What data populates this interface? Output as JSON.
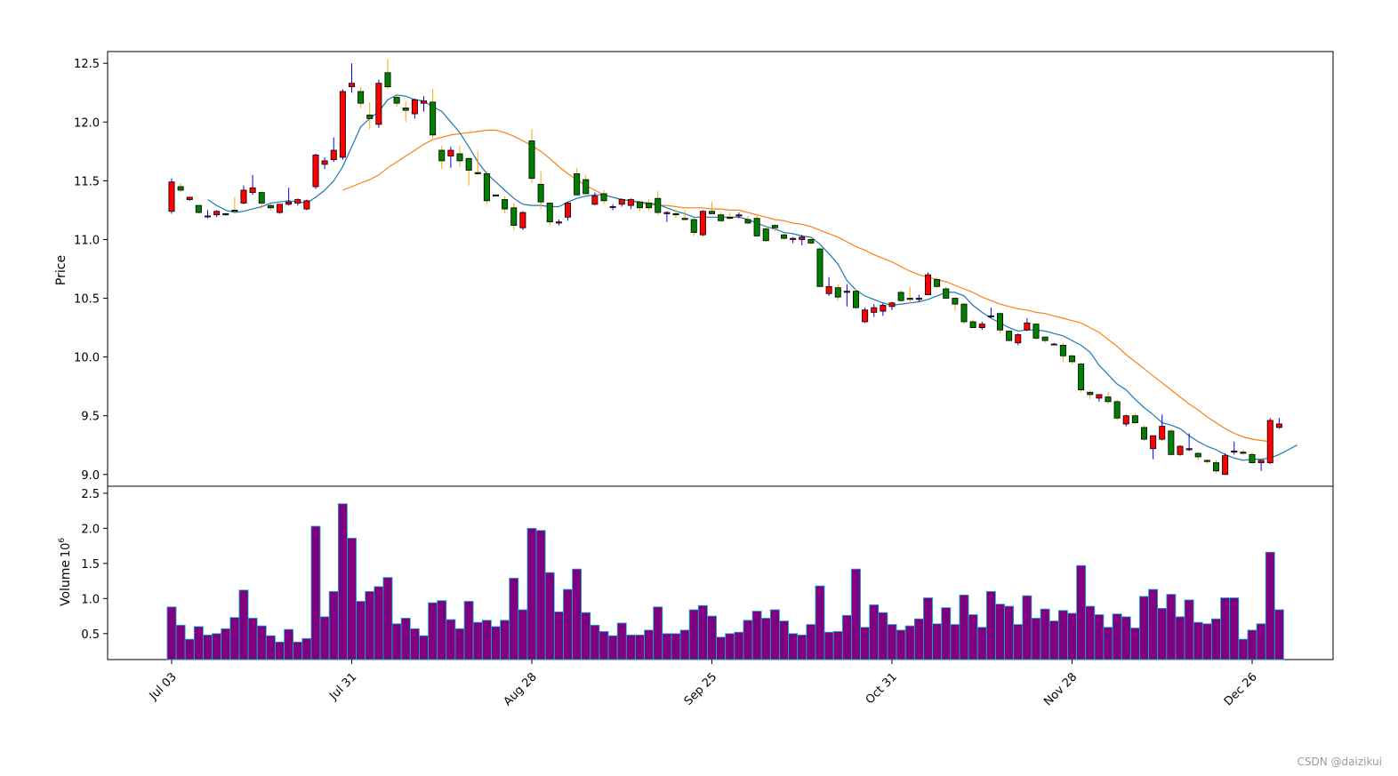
{
  "watermark": "CSDN @daizikui",
  "colors": {
    "up_body": "#ff0000",
    "down_body": "#008000",
    "up_wick": "#0000ff",
    "down_wick": "#ffa500",
    "ma_short": "#1f77b4",
    "ma_long": "#ff7f0e",
    "volume_face": "#800080",
    "volume_edge": "#00bcd4"
  },
  "chart_data": [
    {
      "type": "candlestick",
      "ylabel": "Price",
      "ylim": [
        8.9,
        12.6
      ],
      "yticks": [
        "9.0",
        "9.5",
        "10.0",
        "10.5",
        "11.0",
        "11.5",
        "12.0",
        "12.5"
      ],
      "x_tick_labels": [
        "Jul 03",
        "Jul 31",
        "Aug 28",
        "Sep 25",
        "Oct 31",
        "Nov 28",
        "Dec 26"
      ],
      "x_tick_indices": [
        0,
        20,
        40,
        60,
        80,
        100,
        120
      ],
      "grid": false,
      "candles_ohlc": [
        [
          11.24,
          11.52,
          11.22,
          11.49
        ],
        [
          11.45,
          11.48,
          11.4,
          11.42
        ],
        [
          11.34,
          11.36,
          11.33,
          11.36
        ],
        [
          11.29,
          11.28,
          11.22,
          11.23
        ],
        [
          11.2,
          11.25,
          11.18,
          11.2
        ],
        [
          11.21,
          11.25,
          11.19,
          11.24
        ],
        [
          11.22,
          11.23,
          11.2,
          11.21
        ],
        [
          11.25,
          11.36,
          11.22,
          11.24
        ],
        [
          11.31,
          11.46,
          11.3,
          11.42
        ],
        [
          11.4,
          11.55,
          11.38,
          11.44
        ],
        [
          11.4,
          11.41,
          11.26,
          11.31
        ],
        [
          11.29,
          11.3,
          11.25,
          11.27
        ],
        [
          11.23,
          11.3,
          11.22,
          11.3
        ],
        [
          11.3,
          11.44,
          11.29,
          11.32
        ],
        [
          11.31,
          11.35,
          11.29,
          11.34
        ],
        [
          11.26,
          11.34,
          11.25,
          11.33
        ],
        [
          11.45,
          11.73,
          11.43,
          11.72
        ],
        [
          11.64,
          11.7,
          11.6,
          11.67
        ],
        [
          11.68,
          11.87,
          11.66,
          11.76
        ],
        [
          11.7,
          12.28,
          11.68,
          12.26
        ],
        [
          12.3,
          12.5,
          12.25,
          12.33
        ],
        [
          12.26,
          12.3,
          12.12,
          12.16
        ],
        [
          12.06,
          12.17,
          11.94,
          12.03
        ],
        [
          11.98,
          12.36,
          11.95,
          12.33
        ],
        [
          12.42,
          12.54,
          12.28,
          12.3
        ],
        [
          12.21,
          12.24,
          12.13,
          12.16
        ],
        [
          12.12,
          12.18,
          12.0,
          12.1
        ],
        [
          12.07,
          12.2,
          12.03,
          12.19
        ],
        [
          12.16,
          12.22,
          12.09,
          12.18
        ],
        [
          12.17,
          12.28,
          11.86,
          11.89
        ],
        [
          11.76,
          11.8,
          11.6,
          11.67
        ],
        [
          11.71,
          11.79,
          11.61,
          11.76
        ],
        [
          11.73,
          11.8,
          11.62,
          11.67
        ],
        [
          11.69,
          11.7,
          11.46,
          11.59
        ],
        [
          11.57,
          11.75,
          11.55,
          11.56
        ],
        [
          11.56,
          11.58,
          11.3,
          11.33
        ],
        [
          11.38,
          11.38,
          11.37,
          11.37
        ],
        [
          11.34,
          11.37,
          11.22,
          11.26
        ],
        [
          11.27,
          11.31,
          11.08,
          11.12
        ],
        [
          11.1,
          11.24,
          11.08,
          11.23
        ],
        [
          11.84,
          11.94,
          11.48,
          11.52
        ],
        [
          11.47,
          11.58,
          11.26,
          11.32
        ],
        [
          11.31,
          11.31,
          11.12,
          11.15
        ],
        [
          11.14,
          11.17,
          11.12,
          11.15
        ],
        [
          11.19,
          11.32,
          11.16,
          11.31
        ],
        [
          11.56,
          11.61,
          11.38,
          11.38
        ],
        [
          11.51,
          11.55,
          11.39,
          11.39
        ],
        [
          11.3,
          11.4,
          11.29,
          11.37
        ],
        [
          11.39,
          11.42,
          11.3,
          11.33
        ],
        [
          11.28,
          11.3,
          11.25,
          11.28
        ],
        [
          11.3,
          11.35,
          11.28,
          11.34
        ],
        [
          11.29,
          11.35,
          11.26,
          11.34
        ],
        [
          11.32,
          11.33,
          11.24,
          11.27
        ],
        [
          11.31,
          11.34,
          11.24,
          11.27
        ],
        [
          11.35,
          11.41,
          11.21,
          11.23
        ],
        [
          11.22,
          11.24,
          11.15,
          11.23
        ],
        [
          11.22,
          11.26,
          11.18,
          11.21
        ],
        [
          11.18,
          11.25,
          11.16,
          11.17
        ],
        [
          11.17,
          11.18,
          11.03,
          11.06
        ],
        [
          11.04,
          11.25,
          11.03,
          11.24
        ],
        [
          11.24,
          11.32,
          11.22,
          11.22
        ],
        [
          11.21,
          11.23,
          11.15,
          11.16
        ],
        [
          11.19,
          11.23,
          11.17,
          11.18
        ],
        [
          11.2,
          11.23,
          11.18,
          11.21
        ],
        [
          11.17,
          11.2,
          11.13,
          11.14
        ],
        [
          11.18,
          11.21,
          11.04,
          11.03
        ],
        [
          11.09,
          11.12,
          10.98,
          10.99
        ],
        [
          11.12,
          11.13,
          11.07,
          11.1
        ],
        [
          11.04,
          11.05,
          11.0,
          11.01
        ],
        [
          11.0,
          11.02,
          10.97,
          11.01
        ],
        [
          11.0,
          11.04,
          10.95,
          11.02
        ],
        [
          11.0,
          11.03,
          10.96,
          10.97
        ],
        [
          10.92,
          10.93,
          10.6,
          10.6
        ],
        [
          10.54,
          10.68,
          10.52,
          10.6
        ],
        [
          10.59,
          10.62,
          10.48,
          10.51
        ],
        [
          10.55,
          10.62,
          10.43,
          10.56
        ],
        [
          10.56,
          10.58,
          10.41,
          10.42
        ],
        [
          10.3,
          10.42,
          10.29,
          10.4
        ],
        [
          10.38,
          10.45,
          10.34,
          10.42
        ],
        [
          10.39,
          10.46,
          10.35,
          10.44
        ],
        [
          10.43,
          10.47,
          10.4,
          10.46
        ],
        [
          10.55,
          10.57,
          10.47,
          10.48
        ],
        [
          10.5,
          10.6,
          10.46,
          10.49
        ],
        [
          10.49,
          10.53,
          10.47,
          10.5
        ],
        [
          10.53,
          10.72,
          10.53,
          10.7
        ],
        [
          10.66,
          10.68,
          10.59,
          10.6
        ],
        [
          10.58,
          10.6,
          10.51,
          10.5
        ],
        [
          10.5,
          10.51,
          10.4,
          10.45
        ],
        [
          10.45,
          10.46,
          10.28,
          10.3
        ],
        [
          10.3,
          10.32,
          10.25,
          10.25
        ],
        [
          10.25,
          10.3,
          10.23,
          10.28
        ],
        [
          10.35,
          10.42,
          10.33,
          10.35
        ],
        [
          10.37,
          10.38,
          10.2,
          10.23
        ],
        [
          10.22,
          10.23,
          10.13,
          10.14
        ],
        [
          10.12,
          10.2,
          10.1,
          10.19
        ],
        [
          10.23,
          10.33,
          10.22,
          10.29
        ],
        [
          10.28,
          10.29,
          10.15,
          10.16
        ],
        [
          10.17,
          10.17,
          10.12,
          10.14
        ],
        [
          10.11,
          10.12,
          10.1,
          10.11
        ],
        [
          10.1,
          10.12,
          9.96,
          10.01
        ],
        [
          10.01,
          10.02,
          9.94,
          9.96
        ],
        [
          9.94,
          9.95,
          9.7,
          9.72
        ],
        [
          9.7,
          9.72,
          9.64,
          9.68
        ],
        [
          9.65,
          9.68,
          9.62,
          9.68
        ],
        [
          9.66,
          9.7,
          9.6,
          9.62
        ],
        [
          9.62,
          9.64,
          9.46,
          9.48
        ],
        [
          9.43,
          9.51,
          9.41,
          9.5
        ],
        [
          9.5,
          9.52,
          9.43,
          9.44
        ],
        [
          9.4,
          9.42,
          9.29,
          9.3
        ],
        [
          9.22,
          9.33,
          9.13,
          9.33
        ],
        [
          9.3,
          9.51,
          9.29,
          9.41
        ],
        [
          9.37,
          9.39,
          9.16,
          9.17
        ],
        [
          9.17,
          9.25,
          9.16,
          9.24
        ],
        [
          9.21,
          9.35,
          9.2,
          9.22
        ],
        [
          9.18,
          9.19,
          9.12,
          9.15
        ],
        [
          9.12,
          9.13,
          9.09,
          9.11
        ],
        [
          9.1,
          9.12,
          9.01,
          9.03
        ],
        [
          9.0,
          9.18,
          9.0,
          9.16
        ],
        [
          9.19,
          9.28,
          9.17,
          9.2
        ],
        [
          9.19,
          9.21,
          9.17,
          9.18
        ],
        [
          9.17,
          9.19,
          9.09,
          9.1
        ],
        [
          9.1,
          9.12,
          9.03,
          9.12
        ],
        [
          9.1,
          9.48,
          9.09,
          9.46
        ],
        [
          9.4,
          9.48,
          9.39,
          9.43
        ]
      ],
      "ma_short_values": [
        null,
        null,
        null,
        null,
        11.34,
        11.29,
        11.25,
        11.23,
        11.24,
        11.26,
        11.28,
        11.31,
        11.32,
        11.33,
        11.32,
        11.31,
        11.36,
        11.42,
        11.5,
        11.62,
        11.79,
        11.96,
        12.03,
        12.09,
        12.19,
        12.23,
        12.22,
        12.19,
        12.18,
        12.13,
        12.09,
        12.0,
        11.91,
        11.79,
        11.66,
        11.56,
        11.49,
        11.42,
        11.35,
        11.3,
        11.29,
        11.29,
        11.28,
        11.28,
        11.32,
        11.35,
        11.37,
        11.38,
        11.38,
        11.36,
        11.34,
        11.33,
        11.32,
        11.31,
        11.3,
        11.27,
        11.24,
        11.22,
        11.19,
        11.19,
        11.19,
        11.19,
        11.19,
        11.19,
        11.17,
        11.14,
        11.11,
        11.09,
        11.06,
        11.05,
        11.03,
        11.02,
        10.96,
        10.88,
        10.79,
        10.65,
        10.57,
        10.52,
        10.49,
        10.46,
        10.44,
        10.45,
        10.46,
        10.47,
        10.49,
        10.52,
        10.55,
        10.55,
        10.52,
        10.44,
        10.38,
        10.33,
        10.29,
        10.25,
        10.22,
        10.23,
        10.23,
        10.22,
        10.2,
        10.18,
        10.14,
        10.1,
        10.04,
        9.93,
        9.85,
        9.77,
        9.72,
        9.64,
        9.57,
        9.51,
        9.44,
        9.42,
        9.39,
        9.33,
        9.28,
        9.24,
        9.21,
        9.17,
        9.14,
        9.12,
        9.13,
        9.13,
        9.14,
        9.17,
        9.21,
        9.25
      ],
      "ma_long_values": [
        null,
        null,
        null,
        null,
        null,
        null,
        null,
        null,
        null,
        null,
        null,
        null,
        null,
        null,
        null,
        null,
        null,
        null,
        null,
        11.42,
        11.45,
        11.48,
        11.51,
        11.55,
        11.61,
        11.66,
        11.71,
        11.76,
        11.81,
        11.85,
        11.87,
        11.89,
        11.9,
        11.91,
        11.92,
        11.93,
        11.93,
        11.91,
        11.88,
        11.84,
        11.8,
        11.75,
        11.69,
        11.62,
        11.56,
        11.51,
        11.46,
        11.42,
        11.38,
        11.36,
        11.34,
        11.33,
        11.31,
        11.3,
        11.29,
        11.29,
        11.28,
        11.27,
        11.27,
        11.27,
        11.26,
        11.26,
        11.25,
        11.25,
        11.23,
        11.21,
        11.19,
        11.17,
        11.16,
        11.14,
        11.13,
        11.11,
        11.08,
        11.05,
        11.02,
        10.98,
        10.94,
        10.91,
        10.87,
        10.84,
        10.81,
        10.77,
        10.73,
        10.7,
        10.68,
        10.66,
        10.64,
        10.61,
        10.58,
        10.55,
        10.51,
        10.48,
        10.45,
        10.43,
        10.41,
        10.4,
        10.38,
        10.37,
        10.35,
        10.33,
        10.31,
        10.29,
        10.25,
        10.21,
        10.15,
        10.09,
        10.02,
        9.96,
        9.9,
        9.84,
        9.78,
        9.72,
        9.66,
        9.6,
        9.55,
        9.49,
        9.44,
        9.39,
        9.35,
        9.32,
        9.3,
        9.29,
        9.28
      ]
    },
    {
      "type": "bar",
      "ylabel": "Volume",
      "yscale_label": "10^6",
      "ylim": [
        0.13,
        2.6
      ],
      "yticks": [
        "0.5",
        "1.0",
        "1.5",
        "2.0",
        "2.5"
      ],
      "values_millions": [
        0.88,
        0.62,
        0.42,
        0.6,
        0.48,
        0.5,
        0.57,
        0.73,
        1.12,
        0.72,
        0.61,
        0.47,
        0.38,
        0.56,
        0.38,
        0.43,
        2.03,
        0.74,
        1.1,
        2.35,
        1.86,
        0.96,
        1.1,
        1.17,
        1.3,
        0.64,
        0.72,
        0.57,
        0.47,
        0.94,
        0.97,
        0.7,
        0.57,
        0.96,
        0.66,
        0.69,
        0.6,
        0.69,
        1.29,
        0.84,
        2.0,
        1.97,
        1.37,
        0.81,
        1.13,
        1.42,
        0.8,
        0.62,
        0.53,
        0.47,
        0.65,
        0.48,
        0.48,
        0.55,
        0.88,
        0.5,
        0.5,
        0.55,
        0.84,
        0.9,
        0.75,
        0.45,
        0.5,
        0.52,
        0.69,
        0.82,
        0.72,
        0.84,
        0.68,
        0.5,
        0.48,
        0.63,
        1.18,
        0.52,
        0.53,
        0.76,
        1.42,
        0.59,
        0.91,
        0.8,
        0.63,
        0.55,
        0.61,
        0.71,
        1.01,
        0.64,
        0.87,
        0.63,
        1.05,
        0.77,
        0.59,
        1.1,
        0.92,
        0.89,
        0.63,
        1.04,
        0.72,
        0.85,
        0.68,
        0.83,
        0.79,
        1.47,
        0.89,
        0.77,
        0.59,
        0.78,
        0.74,
        0.58,
        1.03,
        1.13,
        0.86,
        1.06,
        0.74,
        0.98,
        0.66,
        0.64,
        0.71,
        1.01,
        1.01,
        0.42,
        0.55,
        0.64,
        1.66,
        0.84
      ]
    }
  ]
}
